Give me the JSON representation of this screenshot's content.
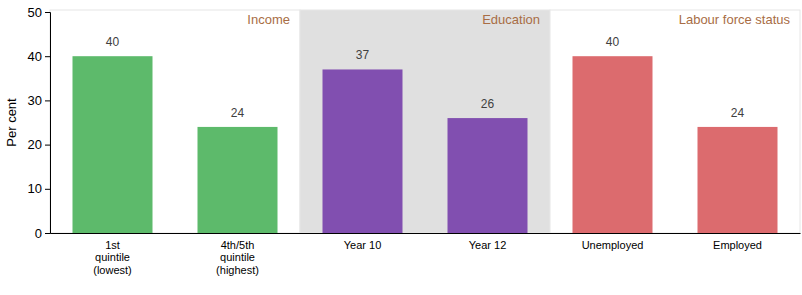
{
  "chart_data": {
    "type": "bar",
    "y_label": "Per cent",
    "annotations": [
      "Income",
      "Education",
      "Labour force status"
    ],
    "categories": [
      "1st\nquintile\n(lowest)",
      "4th/5th\nquintile\n(highest)",
      "Year 10",
      "Year 12",
      "Unemployed",
      "Employed"
    ],
    "values": [
      40,
      24,
      37,
      26,
      40,
      24
    ],
    "colors": [
      "#5dba6b",
      "#5dba6b",
      "#814fb0",
      "#814fb0",
      "#dc6b6e",
      "#dc6b6e"
    ],
    "ylim": [
      0,
      50
    ],
    "yticks": [
      0,
      10,
      20,
      30,
      40,
      50
    ],
    "grid": false,
    "data_labels": true
  }
}
